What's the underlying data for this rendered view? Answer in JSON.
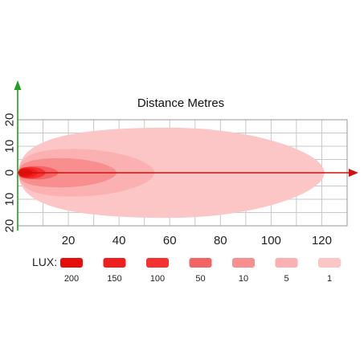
{
  "chart_data": {
    "type": "area",
    "title": "Distance Metres",
    "xlabel": "Distance Metres",
    "ylabel": "",
    "xlim": [
      0,
      130
    ],
    "ylim": [
      -20,
      20
    ],
    "grid": true,
    "x_ticks": [
      {
        "value": 20,
        "label": "20"
      },
      {
        "value": 40,
        "label": "40"
      },
      {
        "value": 60,
        "label": "60"
      },
      {
        "value": 80,
        "label": "80"
      },
      {
        "value": 100,
        "label": "100"
      },
      {
        "value": 120,
        "label": "120"
      }
    ],
    "y_ticks": [
      {
        "value": 20,
        "label": "20"
      },
      {
        "value": 10,
        "label": "10"
      },
      {
        "value": 0,
        "label": "0"
      },
      {
        "value": -10,
        "label": "10"
      },
      {
        "value": -20,
        "label": "20"
      }
    ],
    "legend_title": "LUX:",
    "legend_position": "bottom",
    "series": [
      {
        "name": "1",
        "color": "#fcc6c6",
        "reach": 121,
        "peak_at": 60,
        "half_width": 17
      },
      {
        "name": "5",
        "color": "#fbb1b1",
        "reach": 54,
        "peak_at": 22,
        "half_width": 9
      },
      {
        "name": "10",
        "color": "#f88e8e",
        "reach": 39,
        "peak_at": 17,
        "half_width": 5.5
      },
      {
        "name": "50",
        "color": "#f56464",
        "reach": 16,
        "peak_at": 8,
        "half_width": 2.5
      },
      {
        "name": "100",
        "color": "#f43232",
        "reach": 11,
        "peak_at": 5,
        "half_width": 2.2
      },
      {
        "name": "150",
        "color": "#ee1f1f",
        "reach": 8,
        "peak_at": 4,
        "half_width": 1.8
      },
      {
        "name": "200",
        "color": "#e60d0d",
        "reach": 6,
        "peak_at": 3,
        "half_width": 1.4
      }
    ],
    "legend_order": [
      "200",
      "150",
      "100",
      "50",
      "10",
      "5",
      "1"
    ],
    "colors": {
      "x_axis": "#cc1111",
      "y_axis": "#22a022",
      "grid": "#c8c8c8",
      "frame": "#999999"
    }
  }
}
